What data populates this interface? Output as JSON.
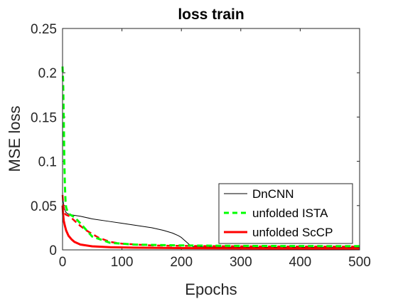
{
  "chart_data": {
    "type": "line",
    "title": "loss train",
    "xlabel": "Epochs",
    "ylabel": "MSE loss",
    "xlim": [
      0,
      500
    ],
    "ylim": [
      0,
      0.25
    ],
    "xticks": [
      0,
      100,
      200,
      300,
      400,
      500
    ],
    "xtick_labels": [
      "0",
      "100",
      "200",
      "300",
      "400",
      "500"
    ],
    "yticks": [
      0,
      0.05,
      0.1,
      0.15,
      0.2,
      0.25
    ],
    "ytick_labels": [
      "0",
      "0.05",
      "0.1",
      "0.15",
      "0.2",
      "0.25"
    ],
    "grid": false,
    "legend_position": "bottom-right",
    "series": [
      {
        "name": "DnCNN",
        "color": "#000000",
        "style": "solid",
        "x": [
          0,
          1,
          3,
          5,
          8,
          12,
          20,
          30,
          50,
          80,
          100,
          130,
          150,
          170,
          185,
          195,
          200,
          205,
          210,
          215,
          220,
          240,
          300,
          400,
          500
        ],
        "y": [
          0.062,
          0.055,
          0.047,
          0.043,
          0.041,
          0.04,
          0.039,
          0.038,
          0.035,
          0.032,
          0.03,
          0.027,
          0.025,
          0.022,
          0.019,
          0.016,
          0.014,
          0.011,
          0.008,
          0.005,
          0.0035,
          0.0032,
          0.003,
          0.0028,
          0.0027
        ]
      },
      {
        "name": "unfolded ISTA",
        "color": "#00ff00",
        "style": "dashed",
        "x": [
          0,
          1,
          2,
          3,
          4,
          5,
          6,
          8,
          12,
          20,
          30,
          50,
          80,
          120,
          200,
          300,
          400,
          500
        ],
        "y": [
          0.207,
          0.19,
          0.15,
          0.1,
          0.072,
          0.055,
          0.048,
          0.044,
          0.04,
          0.037,
          0.03,
          0.015,
          0.008,
          0.006,
          0.005,
          0.0045,
          0.0043,
          0.0042
        ]
      },
      {
        "name": "unfolded ScCP",
        "color": "#ff0000",
        "style": "solid",
        "x": [
          0,
          1,
          2,
          4,
          6,
          10,
          15,
          20,
          30,
          50,
          80,
          120,
          200,
          300,
          400,
          500
        ],
        "y": [
          0.05,
          0.04,
          0.033,
          0.027,
          0.022,
          0.016,
          0.012,
          0.009,
          0.006,
          0.004,
          0.003,
          0.0025,
          0.002,
          0.0017,
          0.0015,
          0.0014
        ]
      },
      {
        "name": "",
        "color": "#ff0000",
        "style": "dashed",
        "x": [
          0,
          1,
          2,
          3,
          5,
          8,
          12,
          20,
          30,
          40,
          60,
          80,
          100,
          150,
          200,
          300,
          400,
          500
        ],
        "y": [
          0.062,
          0.052,
          0.046,
          0.042,
          0.04,
          0.039,
          0.038,
          0.033,
          0.027,
          0.022,
          0.014,
          0.009,
          0.007,
          0.005,
          0.0045,
          0.004,
          0.0038,
          0.0037
        ]
      }
    ]
  }
}
